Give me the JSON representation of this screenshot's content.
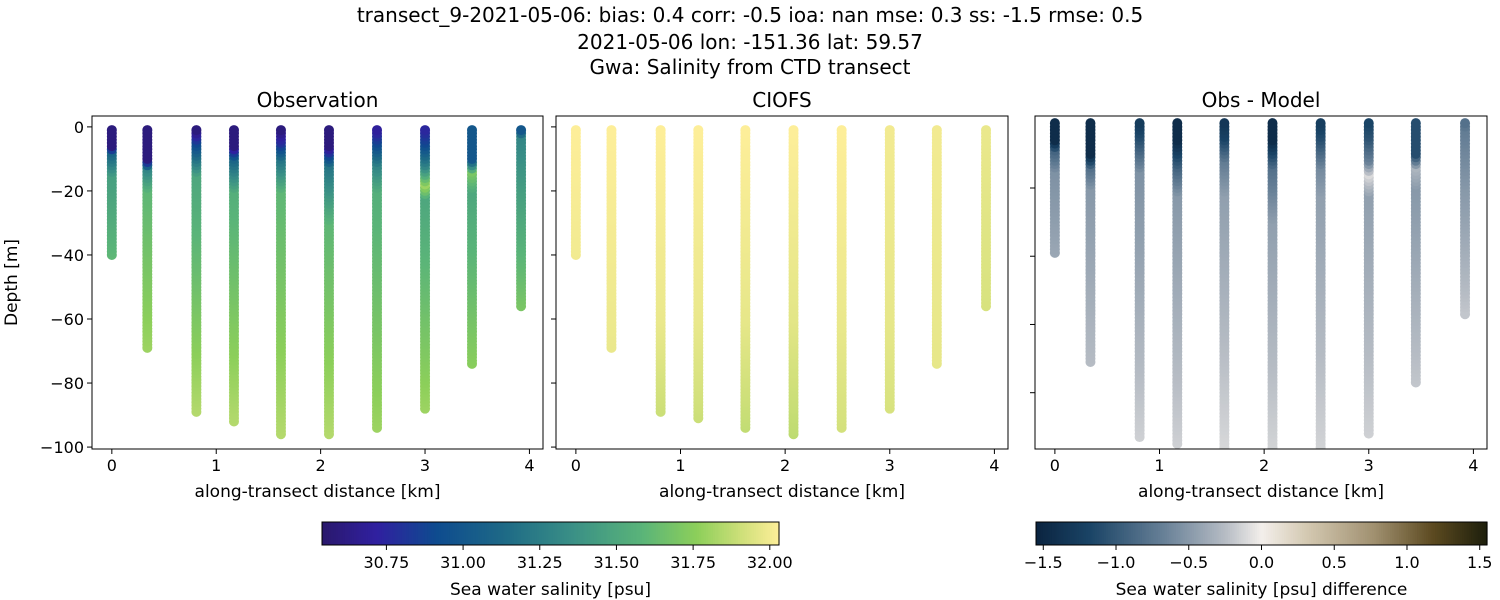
{
  "title": {
    "line1": "transect_9-2021-05-06: bias: 0.4  corr: -0.5  ioa: nan  mse: 0.3  ss: -1.5  rmse: 0.5",
    "line2": "2021-05-06 lon: -151.36 lat: 59.57",
    "line3": "Gwa: Salinity from CTD transect"
  },
  "chart_data": [
    {
      "type": "scatter",
      "title": "Observation",
      "xlabel": "along-transect distance [km]",
      "ylabel": "Depth [m]",
      "xlim": [
        -0.19,
        4.13
      ],
      "ylim": [
        -100.6,
        3.4
      ],
      "xticks": [
        0,
        1,
        2,
        3,
        4
      ],
      "yticks": [
        0,
        -20,
        -40,
        -60,
        -80,
        -100
      ],
      "colormap": "haline",
      "clim": [
        30.54,
        32.03
      ],
      "stations": [
        {
          "x": 0.0,
          "max_depth": 40,
          "profile": [
            [
              1,
              30.6
            ],
            [
              6,
              30.6
            ],
            [
              8,
              31.1
            ],
            [
              15,
              31.45
            ],
            [
              40,
              31.6
            ]
          ]
        },
        {
          "x": 0.34,
          "max_depth": 69,
          "profile": [
            [
              1,
              30.6
            ],
            [
              10,
              30.6
            ],
            [
              13,
              31.3
            ],
            [
              20,
              31.6
            ],
            [
              69,
              31.8
            ]
          ]
        },
        {
          "x": 0.81,
          "max_depth": 89,
          "profile": [
            [
              1,
              30.6
            ],
            [
              5,
              30.9
            ],
            [
              15,
              31.5
            ],
            [
              89,
              31.85
            ]
          ]
        },
        {
          "x": 1.17,
          "max_depth": 92,
          "profile": [
            [
              1,
              30.6
            ],
            [
              6,
              30.6
            ],
            [
              10,
              31.1
            ],
            [
              20,
              31.55
            ],
            [
              92,
              31.85
            ]
          ]
        },
        {
          "x": 1.62,
          "max_depth": 96,
          "profile": [
            [
              1,
              30.6
            ],
            [
              5,
              30.8
            ],
            [
              10,
              31.2
            ],
            [
              20,
              31.6
            ],
            [
              96,
              31.85
            ]
          ]
        },
        {
          "x": 2.08,
          "max_depth": 96,
          "profile": [
            [
              1,
              30.6
            ],
            [
              6,
              30.6
            ],
            [
              12,
              31.2
            ],
            [
              30,
              31.6
            ],
            [
              96,
              31.85
            ]
          ]
        },
        {
          "x": 2.54,
          "max_depth": 94,
          "profile": [
            [
              1,
              30.7
            ],
            [
              5,
              30.9
            ],
            [
              12,
              31.3
            ],
            [
              20,
              31.55
            ],
            [
              94,
              31.8
            ]
          ]
        },
        {
          "x": 3.0,
          "max_depth": 88,
          "profile": [
            [
              1,
              30.75
            ],
            [
              5,
              30.9
            ],
            [
              12,
              31.3
            ],
            [
              18,
              31.8
            ],
            [
              22,
              31.5
            ],
            [
              88,
              31.8
            ]
          ]
        },
        {
          "x": 3.45,
          "max_depth": 74,
          "profile": [
            [
              1,
              31.0
            ],
            [
              10,
              31.0
            ],
            [
              14,
              31.7
            ],
            [
              20,
              31.5
            ],
            [
              74,
              31.75
            ]
          ]
        },
        {
          "x": 3.92,
          "max_depth": 56,
          "profile": [
            [
              1,
              31.0
            ],
            [
              3,
              31.3
            ],
            [
              20,
              31.45
            ],
            [
              56,
              31.7
            ]
          ]
        }
      ]
    },
    {
      "type": "scatter",
      "title": "CIOFS",
      "xlabel": "along-transect distance [km]",
      "xlim": [
        -0.19,
        4.13
      ],
      "ylim": [
        -100.6,
        3.4
      ],
      "xticks": [
        0,
        1,
        2,
        3,
        4
      ],
      "yticks": [
        0,
        -20,
        -40,
        -60,
        -80,
        -100
      ],
      "colormap": "haline",
      "clim": [
        30.54,
        32.03
      ],
      "stations": [
        {
          "x": 0.0,
          "max_depth": 40,
          "profile": [
            [
              1,
              32.03
            ],
            [
              40,
              32.0
            ]
          ]
        },
        {
          "x": 0.34,
          "max_depth": 69,
          "profile": [
            [
              1,
              32.03
            ],
            [
              69,
              31.98
            ]
          ]
        },
        {
          "x": 0.81,
          "max_depth": 89,
          "profile": [
            [
              1,
              32.03
            ],
            [
              60,
              31.98
            ],
            [
              89,
              31.9
            ]
          ]
        },
        {
          "x": 1.17,
          "max_depth": 91,
          "profile": [
            [
              1,
              32.03
            ],
            [
              60,
              31.98
            ],
            [
              91,
              31.9
            ]
          ]
        },
        {
          "x": 1.62,
          "max_depth": 94,
          "profile": [
            [
              1,
              32.03
            ],
            [
              60,
              31.97
            ],
            [
              94,
              31.88
            ]
          ]
        },
        {
          "x": 2.08,
          "max_depth": 96,
          "profile": [
            [
              1,
              32.03
            ],
            [
              60,
              31.96
            ],
            [
              96,
              31.87
            ]
          ]
        },
        {
          "x": 2.54,
          "max_depth": 94,
          "profile": [
            [
              1,
              32.03
            ],
            [
              60,
              31.98
            ],
            [
              94,
              31.92
            ]
          ]
        },
        {
          "x": 3.0,
          "max_depth": 88,
          "profile": [
            [
              1,
              32.0
            ],
            [
              60,
              31.97
            ],
            [
              88,
              31.93
            ]
          ]
        },
        {
          "x": 3.45,
          "max_depth": 74,
          "profile": [
            [
              1,
              32.0
            ],
            [
              74,
              31.97
            ]
          ]
        },
        {
          "x": 3.92,
          "max_depth": 56,
          "profile": [
            [
              1,
              31.98
            ],
            [
              56,
              31.93
            ]
          ]
        }
      ]
    },
    {
      "type": "scatter",
      "title": "Obs - Model",
      "xlabel": "along-transect distance [km]",
      "xlim": [
        -0.19,
        4.13
      ],
      "ylim": [
        -96.5,
        1.1
      ],
      "xticks": [
        0,
        1,
        2,
        3,
        4
      ],
      "yticks": [
        -20,
        -40,
        -60,
        -80
      ],
      "colormap": "diff",
      "clim": [
        -1.55,
        1.55
      ],
      "stations": [
        {
          "x": 0.0,
          "max_depth": 39,
          "profile": [
            [
              -3,
              -1.45
            ],
            [
              6,
              -1.45
            ],
            [
              9,
              -0.9
            ],
            [
              15,
              -0.55
            ],
            [
              39,
              -0.4
            ]
          ]
        },
        {
          "x": 0.34,
          "max_depth": 71,
          "profile": [
            [
              -3,
              -1.45
            ],
            [
              10,
              -1.45
            ],
            [
              14,
              -0.8
            ],
            [
              20,
              -0.5
            ],
            [
              71,
              -0.25
            ]
          ]
        },
        {
          "x": 0.81,
          "max_depth": 93,
          "profile": [
            [
              -3,
              -1.45
            ],
            [
              5,
              -1.1
            ],
            [
              15,
              -0.55
            ],
            [
              93,
              -0.15
            ]
          ]
        },
        {
          "x": 1.17,
          "max_depth": 95,
          "profile": [
            [
              -3,
              -1.45
            ],
            [
              6,
              -1.45
            ],
            [
              14,
              -0.9
            ],
            [
              22,
              -0.5
            ],
            [
              95,
              -0.15
            ]
          ]
        },
        {
          "x": 1.62,
          "max_depth": 99,
          "profile": [
            [
              -3,
              -1.45
            ],
            [
              5,
              -1.2
            ],
            [
              12,
              -0.7
            ],
            [
              22,
              -0.45
            ],
            [
              99,
              -0.1
            ]
          ]
        },
        {
          "x": 2.08,
          "max_depth": 103,
          "profile": [
            [
              -3,
              -1.45
            ],
            [
              6,
              -1.45
            ],
            [
              14,
              -0.8
            ],
            [
              30,
              -0.45
            ],
            [
              103,
              -0.1
            ]
          ]
        },
        {
          "x": 2.54,
          "max_depth": 99,
          "profile": [
            [
              -3,
              -1.4
            ],
            [
              5,
              -1.1
            ],
            [
              14,
              -0.6
            ],
            [
              22,
              -0.45
            ],
            [
              99,
              -0.12
            ]
          ]
        },
        {
          "x": 3.0,
          "max_depth": 92,
          "profile": [
            [
              -3,
              -1.3
            ],
            [
              5,
              -1.05
            ],
            [
              12,
              -0.65
            ],
            [
              16,
              -0.1
            ],
            [
              22,
              -0.45
            ],
            [
              92,
              -0.15
            ]
          ]
        },
        {
          "x": 3.45,
          "max_depth": 77,
          "profile": [
            [
              -3,
              -1.1
            ],
            [
              10,
              -1.1
            ],
            [
              14,
              -0.3
            ],
            [
              20,
              -0.5
            ],
            [
              77,
              -0.2
            ]
          ]
        },
        {
          "x": 3.92,
          "max_depth": 57,
          "profile": [
            [
              -3,
              -1.0
            ],
            [
              3,
              -0.7
            ],
            [
              20,
              -0.5
            ],
            [
              56,
              -0.2
            ]
          ]
        }
      ]
    }
  ],
  "colorbars": {
    "salinity": {
      "label": "Sea water salinity [psu]",
      "ticks": [
        "30.75",
        "31.00",
        "31.25",
        "31.50",
        "31.75",
        "32.00"
      ],
      "tick_values": [
        30.75,
        31.0,
        31.25,
        31.5,
        31.75,
        32.0
      ],
      "range": [
        30.54,
        32.03
      ]
    },
    "difference": {
      "label": "Sea water salinity [psu] difference",
      "ticks": [
        "−1.5",
        "−1.0",
        "−0.5",
        "0.0",
        "0.5",
        "1.0",
        "1.5"
      ],
      "tick_values": [
        -1.5,
        -1.0,
        -0.5,
        0.0,
        0.5,
        1.0,
        1.5
      ],
      "range": [
        -1.55,
        1.55
      ]
    }
  },
  "colormaps": {
    "haline": [
      [
        0,
        "#2a186c"
      ],
      [
        0.12,
        "#3020a0"
      ],
      [
        0.25,
        "#0e4b8f"
      ],
      [
        0.4,
        "#1e6a86"
      ],
      [
        0.55,
        "#3a9086"
      ],
      [
        0.7,
        "#5ab479"
      ],
      [
        0.82,
        "#8ccf5a"
      ],
      [
        0.92,
        "#d0e07a"
      ],
      [
        1,
        "#fdee99"
      ]
    ],
    "diff": [
      [
        0,
        "#0b2440"
      ],
      [
        0.12,
        "#1a4466"
      ],
      [
        0.28,
        "#667f96"
      ],
      [
        0.42,
        "#b6bcc4"
      ],
      [
        0.5,
        "#f3efeb"
      ],
      [
        0.6,
        "#d4c9b2"
      ],
      [
        0.75,
        "#a09070"
      ],
      [
        0.88,
        "#5c4a20"
      ],
      [
        1,
        "#1d1f0c"
      ]
    ]
  }
}
